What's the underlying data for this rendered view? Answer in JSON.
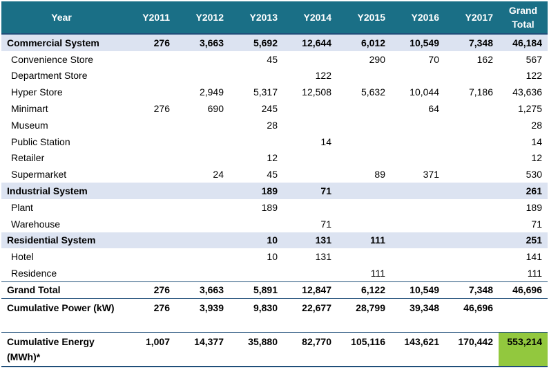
{
  "header": {
    "year": "Year",
    "y2011": "Y2011",
    "y2012": "Y2012",
    "y2013": "Y2013",
    "y2014": "Y2014",
    "y2015": "Y2015",
    "y2016": "Y2016",
    "y2017": "Y2017",
    "grand_total": "Grand Total"
  },
  "rows": [
    {
      "label": "Commercial System",
      "values": [
        "276",
        "3,663",
        "5,692",
        "12,644",
        "6,012",
        "10,549",
        "7,348",
        "46,184"
      ]
    },
    {
      "label": "Convenience Store",
      "values": [
        "",
        "",
        "45",
        "",
        "290",
        "70",
        "162",
        "567"
      ]
    },
    {
      "label": "Department Store",
      "values": [
        "",
        "",
        "",
        "122",
        "",
        "",
        "",
        "122"
      ]
    },
    {
      "label": "Hyper Store",
      "values": [
        "",
        "2,949",
        "5,317",
        "12,508",
        "5,632",
        "10,044",
        "7,186",
        "43,636"
      ]
    },
    {
      "label": "Minimart",
      "values": [
        "276",
        "690",
        "245",
        "",
        "",
        "64",
        "",
        "1,275"
      ]
    },
    {
      "label": "Museum",
      "values": [
        "",
        "",
        "28",
        "",
        "",
        "",
        "",
        "28"
      ]
    },
    {
      "label": "Public Station",
      "values": [
        "",
        "",
        "",
        "14",
        "",
        "",
        "",
        "14"
      ]
    },
    {
      "label": "Retailer",
      "values": [
        "",
        "",
        "12",
        "",
        "",
        "",
        "",
        "12"
      ]
    },
    {
      "label": "Supermarket",
      "values": [
        "",
        "24",
        "45",
        "",
        "89",
        "371",
        "",
        "530"
      ]
    },
    {
      "label": "Industrial System",
      "values": [
        "",
        "",
        "189",
        "71",
        "",
        "",
        "",
        "261"
      ]
    },
    {
      "label": "Plant",
      "values": [
        "",
        "",
        "189",
        "",
        "",
        "",
        "",
        "189"
      ]
    },
    {
      "label": "Warehouse",
      "values": [
        "",
        "",
        "",
        "71",
        "",
        "",
        "",
        "71"
      ]
    },
    {
      "label": "Residential System",
      "values": [
        "",
        "",
        "10",
        "131",
        "111",
        "",
        "",
        "251"
      ]
    },
    {
      "label": "Hotel",
      "values": [
        "",
        "",
        "10",
        "131",
        "",
        "",
        "",
        "141"
      ]
    },
    {
      "label": "Residence",
      "values": [
        "",
        "",
        "",
        "",
        "111",
        "",
        "",
        "111"
      ]
    },
    {
      "label": "Grand Total",
      "values": [
        "276",
        "3,663",
        "5,891",
        "12,847",
        "6,122",
        "10,549",
        "7,348",
        "46,696"
      ]
    },
    {
      "label": "Cumulative Power (kW)",
      "values": [
        "276",
        "3,939",
        "9,830",
        "22,677",
        "28,799",
        "39,348",
        "46,696",
        ""
      ]
    },
    {
      "label": "Cumulative Energy (MWh)*",
      "values": [
        "1,007",
        "14,377",
        "35,880",
        "82,770",
        "105,116",
        "143,621",
        "170,442",
        "553,214"
      ]
    }
  ],
  "colors": {
    "header_bg": "#1a6f86",
    "group_bg": "#dce3f1",
    "highlight_bg": "#92c83e",
    "rule": "#1f4e79"
  }
}
